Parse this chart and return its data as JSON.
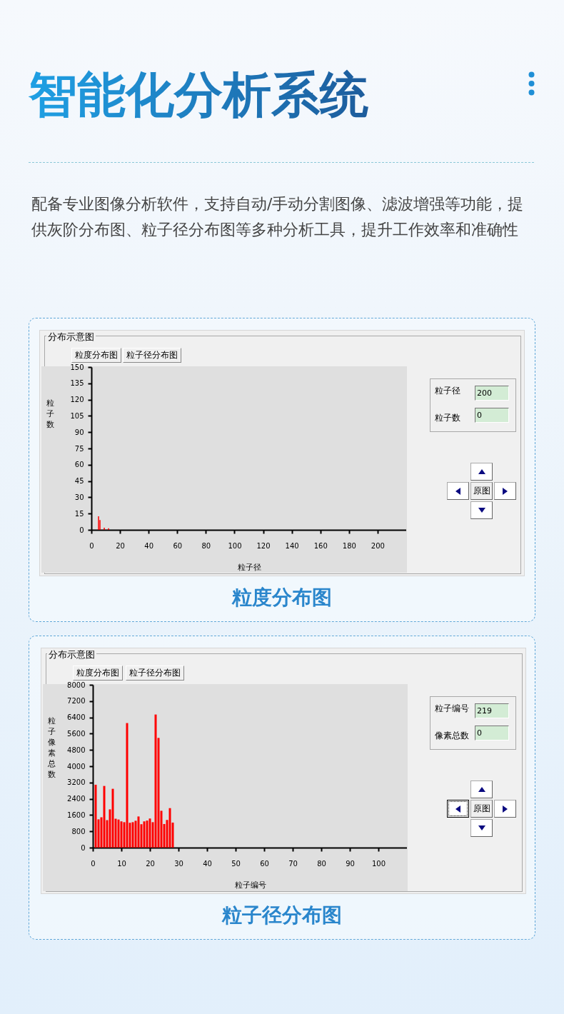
{
  "chart_data": [
    {
      "type": "bar",
      "title": "粒度分布图",
      "xlabel": "粒子径",
      "ylabel": "粒子数",
      "color": "#ff0000",
      "x": [
        5,
        6,
        9,
        12
      ],
      "values": [
        12.5,
        9,
        2,
        1.5
      ],
      "xlim": [
        0,
        220
      ],
      "xticks": [
        0,
        20,
        40,
        60,
        80,
        100,
        120,
        140,
        160,
        180,
        200
      ],
      "ylim": [
        0,
        150
      ],
      "yticks": [
        0,
        15,
        30,
        45,
        60,
        75,
        90,
        105,
        120,
        135,
        150
      ],
      "annotations": [
        "智能化分析系统",
        "配备专业图像分析软件，支持自动/手动分割图像、滤波增强等功能，提供灰阶分布图、粒子径分布图等多种分析工具，提升工作效率和准确性",
        "分布示意图",
        "粒度分布图",
        "粒子径分布图",
        "粒子径",
        "200",
        "粒子数",
        "0",
        "原图"
      ]
    },
    {
      "type": "bar",
      "title": "粒子径分布图",
      "xlabel": "粒子编号",
      "ylabel": "粒子像素总数",
      "color": "#ff0000",
      "x": [
        1,
        2,
        3,
        4,
        5,
        6,
        7,
        8,
        9,
        10,
        11,
        12,
        13,
        14,
        15,
        16,
        17,
        18,
        19,
        20,
        21,
        22,
        23,
        24,
        25,
        26,
        27,
        28
      ],
      "values": [
        3090,
        1390,
        1490,
        3030,
        1350,
        1880,
        2890,
        1420,
        1380,
        1290,
        1250,
        6120,
        1220,
        1250,
        1320,
        1530,
        1150,
        1290,
        1330,
        1430,
        1250,
        6540,
        5390,
        1810,
        1160,
        1360,
        1940,
        1230
      ],
      "xlim": [
        0,
        110
      ],
      "xticks": [
        0,
        10,
        20,
        30,
        40,
        50,
        60,
        70,
        80,
        90,
        100
      ],
      "ylim": [
        0,
        8000
      ],
      "yticks": [
        0,
        800,
        1600,
        2400,
        3200,
        4000,
        4800,
        5600,
        6400,
        7200,
        8000
      ],
      "annotations": [
        "分布示意图",
        "粒度分布图",
        "粒子径分布图",
        "粒子编号",
        "219",
        "像素总数",
        "0",
        "原图"
      ]
    }
  ]
}
